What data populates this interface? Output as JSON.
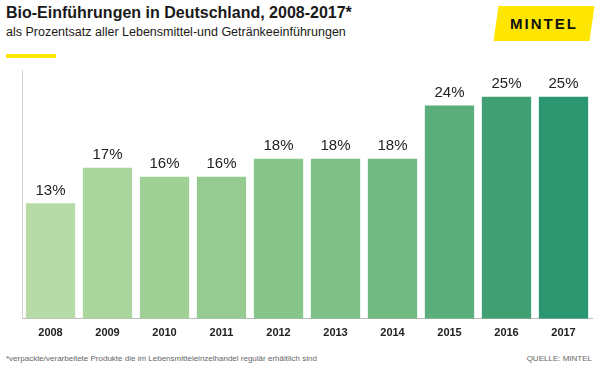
{
  "chart_data": {
    "type": "bar",
    "title": "Bio-Einführungen in Deutschland, 2008-2017*",
    "subtitle": "als Prozentsatz aller Lebensmittel-und Getränkeeinführungen",
    "logo": "MINTEL",
    "note": "*verpackte/verarbeitete Produkte die im Lebensmitteleinzelhandel regulär erhältlich sind",
    "source": "QUELLE: MINTEL",
    "categories": [
      "2008",
      "2009",
      "2010",
      "2011",
      "2012",
      "2013",
      "2014",
      "2015",
      "2016",
      "2017"
    ],
    "values": [
      13,
      17,
      16,
      16,
      18,
      18,
      18,
      24,
      25,
      25
    ],
    "value_labels": [
      "13%",
      "17%",
      "16%",
      "16%",
      "18%",
      "18%",
      "18%",
      "24%",
      "25%",
      "25%"
    ],
    "colors": [
      "#b7dba6",
      "#aad59d",
      "#9fd096",
      "#95cb90",
      "#88c58a",
      "#7ec086",
      "#72ba82",
      "#5aae7b",
      "#40a073",
      "#2b9670"
    ],
    "ylim": [
      0,
      28
    ],
    "grid": false,
    "data_labels": true,
    "tick_labels": "x"
  }
}
